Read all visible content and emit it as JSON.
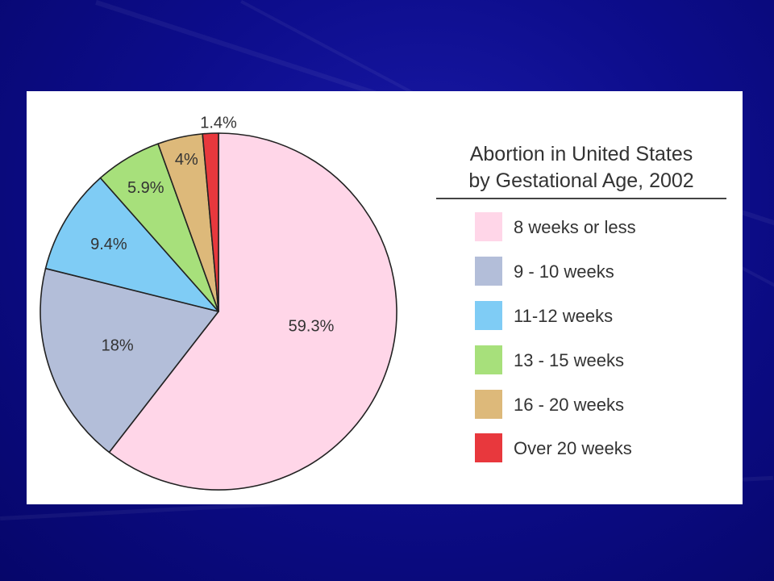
{
  "chart_data": {
    "type": "pie",
    "title": "Abortion in United States by Gestational Age, 2002",
    "title_lines": [
      "Abortion in United States",
      "by Gestational Age, 2002"
    ],
    "series": [
      {
        "name": "8 weeks or less",
        "value": 59.3,
        "label": "59.3%",
        "color": "#ffd6e8"
      },
      {
        "name": "9 - 10 weeks",
        "value": 18,
        "label": "18%",
        "color": "#b3bed9"
      },
      {
        "name": "11-12 weeks",
        "value": 9.4,
        "label": "9.4%",
        "color": "#7fccf5"
      },
      {
        "name": "13 - 15 weeks",
        "value": 5.9,
        "label": "5.9%",
        "color": "#a7e07b"
      },
      {
        "name": "16 - 20 weeks",
        "value": 4,
        "label": "4%",
        "color": "#ddb97a"
      },
      {
        "name": "Over 20 weeks",
        "value": 1.4,
        "label": "1.4%",
        "color": "#e8383d"
      }
    ],
    "legend_position": "right"
  },
  "colors": {
    "background": "#0d0d8c",
    "panel": "#ffffff",
    "outline": "#222222"
  }
}
